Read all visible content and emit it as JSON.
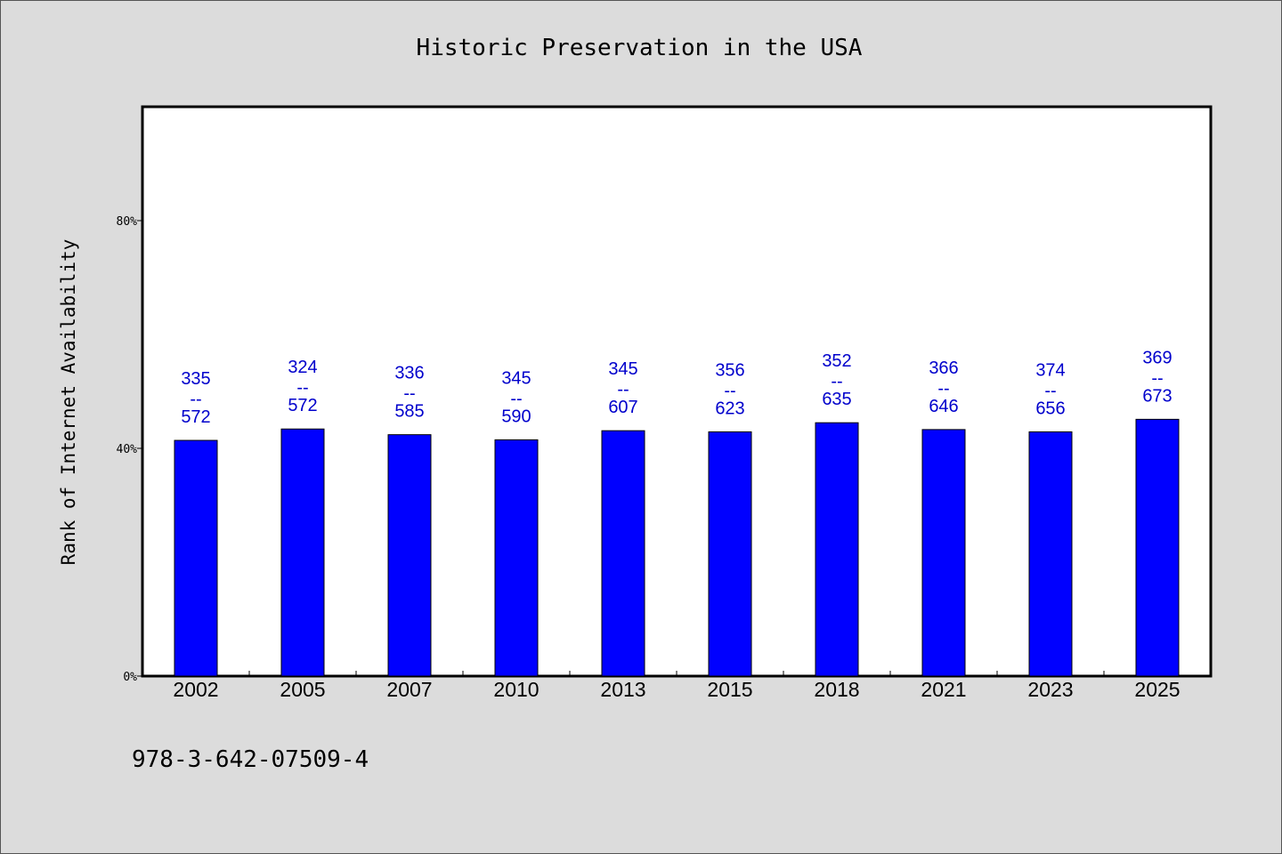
{
  "chart_data": {
    "type": "bar",
    "title": "Historic Preservation in the USA",
    "xlabel": "",
    "ylabel": "Rank of Internet Availability",
    "ylim": [
      0,
      100
    ],
    "y_ticks": [
      {
        "value": 0,
        "label": "0%"
      },
      {
        "value": 40,
        "label": "40%"
      },
      {
        "value": 80,
        "label": "80%"
      }
    ],
    "categories": [
      "2002",
      "2005",
      "2007",
      "2010",
      "2013",
      "2015",
      "2018",
      "2021",
      "2023",
      "2025"
    ],
    "values": [
      41.4,
      43.4,
      42.4,
      41.5,
      43.1,
      42.9,
      44.5,
      43.3,
      42.9,
      45.1
    ],
    "data_labels": [
      {
        "top": "335",
        "sep": "--",
        "bottom": "572"
      },
      {
        "top": "324",
        "sep": "--",
        "bottom": "572"
      },
      {
        "top": "336",
        "sep": "--",
        "bottom": "585"
      },
      {
        "top": "345",
        "sep": "--",
        "bottom": "590"
      },
      {
        "top": "345",
        "sep": "--",
        "bottom": "607"
      },
      {
        "top": "356",
        "sep": "--",
        "bottom": "623"
      },
      {
        "top": "352",
        "sep": "--",
        "bottom": "635"
      },
      {
        "top": "366",
        "sep": "--",
        "bottom": "646"
      },
      {
        "top": "374",
        "sep": "--",
        "bottom": "656"
      },
      {
        "top": "369",
        "sep": "--",
        "bottom": "673"
      }
    ],
    "grid": false,
    "legend": "none",
    "colors": {
      "bar": "#0000ff",
      "data_label": "#0000cc",
      "background": "#dcdcdc",
      "plot_background": "#ffffff"
    }
  },
  "footer": {
    "isbn": "978-3-642-07509-4"
  }
}
